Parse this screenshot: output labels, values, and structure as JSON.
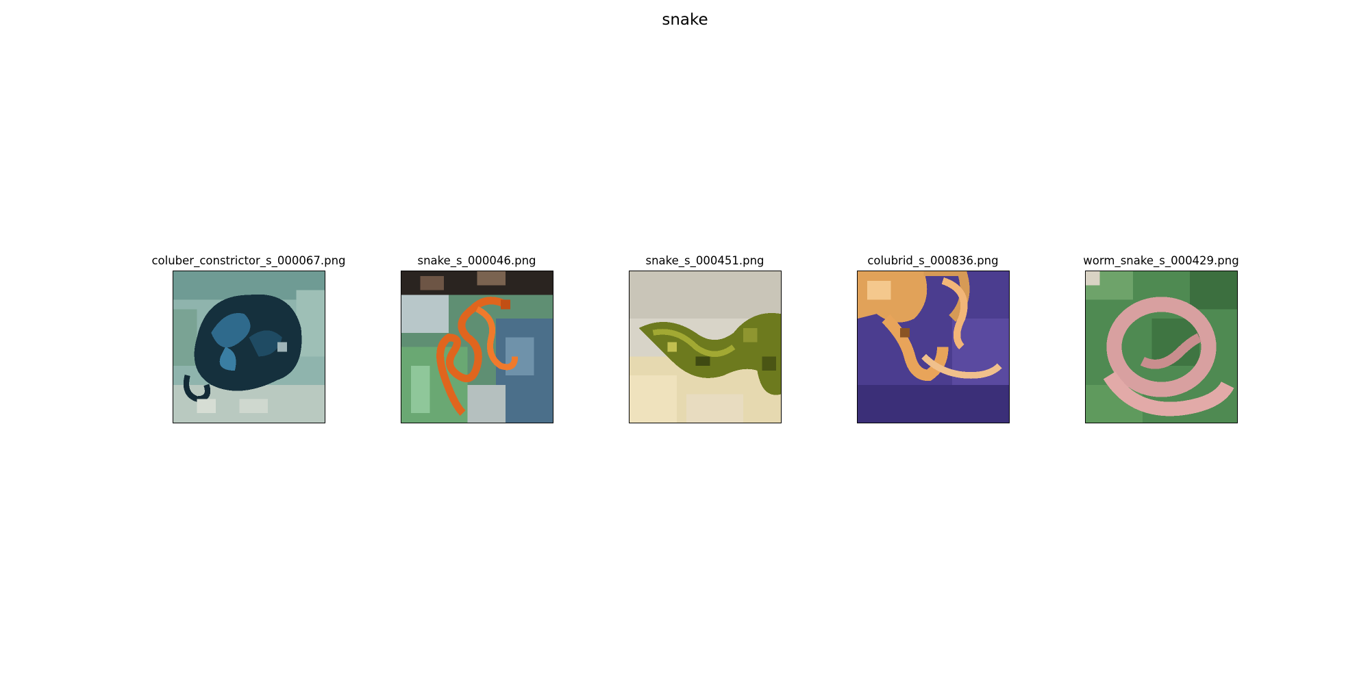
{
  "figure": {
    "title": "snake"
  },
  "images": [
    {
      "label": "coluber_constrictor_s_000067.png",
      "subject": "dark blue coiled snake on pale ground"
    },
    {
      "label": "snake_s_000046.png",
      "subject": "orange snake on green leaves"
    },
    {
      "label": "snake_s_000451.png",
      "subject": "green snake head on sand"
    },
    {
      "label": "colubrid_s_000836.png",
      "subject": "orange snake on purple cloth"
    },
    {
      "label": "worm_snake_s_000429.png",
      "subject": "pink worm snake coiled on green leaf"
    }
  ],
  "colors": {
    "background": "#ffffff",
    "frame": "#000000"
  }
}
